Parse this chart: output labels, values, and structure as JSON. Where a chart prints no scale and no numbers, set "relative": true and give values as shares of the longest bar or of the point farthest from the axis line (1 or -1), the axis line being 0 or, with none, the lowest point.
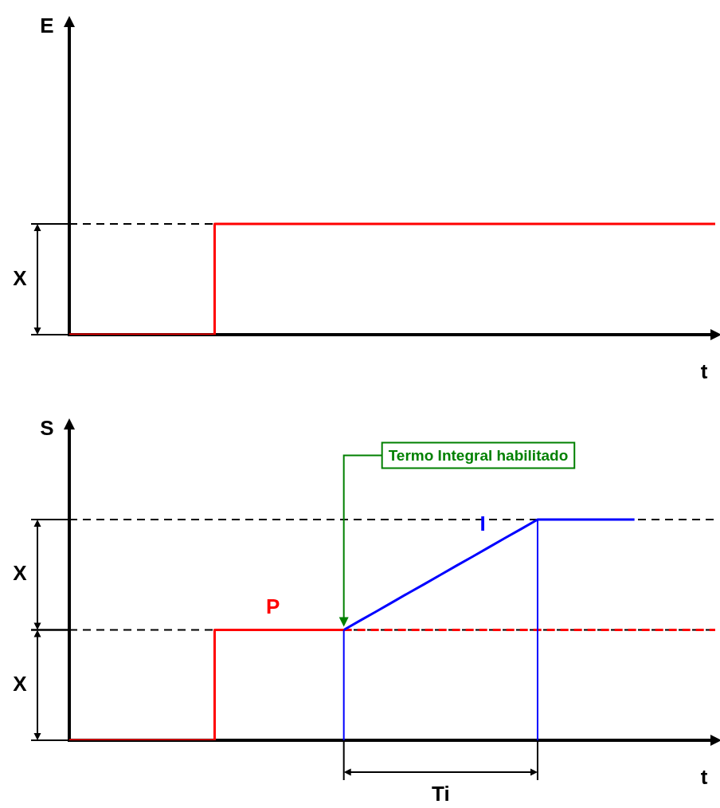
{
  "chart_data": [
    {
      "type": "step",
      "ylabel": "E",
      "xlabel": "t",
      "relative": true,
      "legend": false,
      "marker": "none",
      "categories": [
        null,
        null,
        null,
        null,
        null,
        null,
        null,
        null,
        null,
        null,
        null,
        null,
        null,
        null,
        null,
        null,
        null,
        null,
        null,
        null,
        null,
        null,
        null,
        null,
        null,
        null,
        null,
        null,
        null,
        null,
        null,
        null,
        null,
        null,
        null,
        null,
        null,
        null,
        null,
        null,
        null
      ],
      "series": [
        {
          "color": "#ff0000",
          "values": [
            0,
            0,
            0,
            0,
            0,
            0,
            0,
            0,
            0,
            1,
            1,
            1,
            1,
            1,
            1,
            1,
            1,
            1,
            1,
            1,
            1,
            1,
            1,
            1,
            1,
            1,
            1,
            1,
            1,
            1,
            1,
            1,
            1,
            1,
            1,
            1,
            1,
            1,
            1,
            1,
            1
          ]
        }
      ],
      "ref_lines": [
        {
          "axis": "y",
          "value": 1,
          "color": "#000000",
          "line_style": "dashed"
        }
      ],
      "annotations": [
        "X"
      ]
    },
    {
      "type": "step",
      "ylabel": "S",
      "xlabel": "t",
      "relative": true,
      "legend": false,
      "marker": "none",
      "categories": [
        null,
        null,
        null,
        null,
        null,
        null,
        null,
        null,
        null,
        null,
        null,
        null,
        null,
        null,
        null,
        null,
        null,
        null,
        null,
        null,
        null,
        null,
        null,
        null,
        null,
        null,
        null,
        null,
        null,
        null,
        null,
        null,
        null,
        null,
        null,
        null,
        null,
        null,
        null,
        null,
        null
      ],
      "series": [
        {
          "name": "P",
          "color": "#ff0000",
          "values": [
            0,
            0,
            0,
            0,
            0,
            0,
            0,
            0,
            0,
            0.5,
            0.5,
            0.5,
            0.5,
            0.5,
            0.5,
            0.5,
            0.5,
            0.5,
            null,
            null,
            null,
            null,
            null,
            null,
            null,
            null,
            null,
            null,
            null,
            null,
            null,
            null,
            null,
            null,
            null,
            null,
            null,
            null,
            null,
            null,
            null
          ]
        },
        {
          "name": "I",
          "type": "line",
          "color": "#0000ff",
          "values": [
            null,
            null,
            null,
            null,
            null,
            null,
            null,
            null,
            null,
            null,
            null,
            null,
            null,
            null,
            null,
            null,
            null,
            0.5,
            0.542,
            0.583,
            0.625,
            0.667,
            0.708,
            0.75,
            0.792,
            0.833,
            0.875,
            0.917,
            0.958,
            1,
            1,
            1,
            1,
            1,
            1,
            1,
            null,
            null,
            null,
            null,
            null
          ]
        },
        {
          "type": "line",
          "color": "#ff0000",
          "line_style": "dashed",
          "values": [
            null,
            null,
            null,
            null,
            null,
            null,
            null,
            null,
            null,
            null,
            null,
            null,
            null,
            null,
            null,
            null,
            null,
            0.5,
            0.5,
            0.5,
            0.5,
            0.5,
            0.5,
            0.5,
            0.5,
            0.5,
            0.5,
            0.5,
            0.5,
            0.5,
            0.5,
            0.5,
            0.5,
            0.5,
            0.5,
            0.5,
            0.5,
            0.5,
            0.5,
            0.5,
            0.5
          ]
        }
      ],
      "ref_lines": [
        {
          "axis": "y",
          "value": 1,
          "color": "#000000",
          "line_style": "dashed"
        },
        {
          "axis": "y",
          "value": 0.5,
          "color": "#000000",
          "line_style": "dashed"
        }
      ],
      "annotations": [
        "X",
        "X",
        "Ti",
        "Termo Integral habilitado"
      ]
    }
  ]
}
